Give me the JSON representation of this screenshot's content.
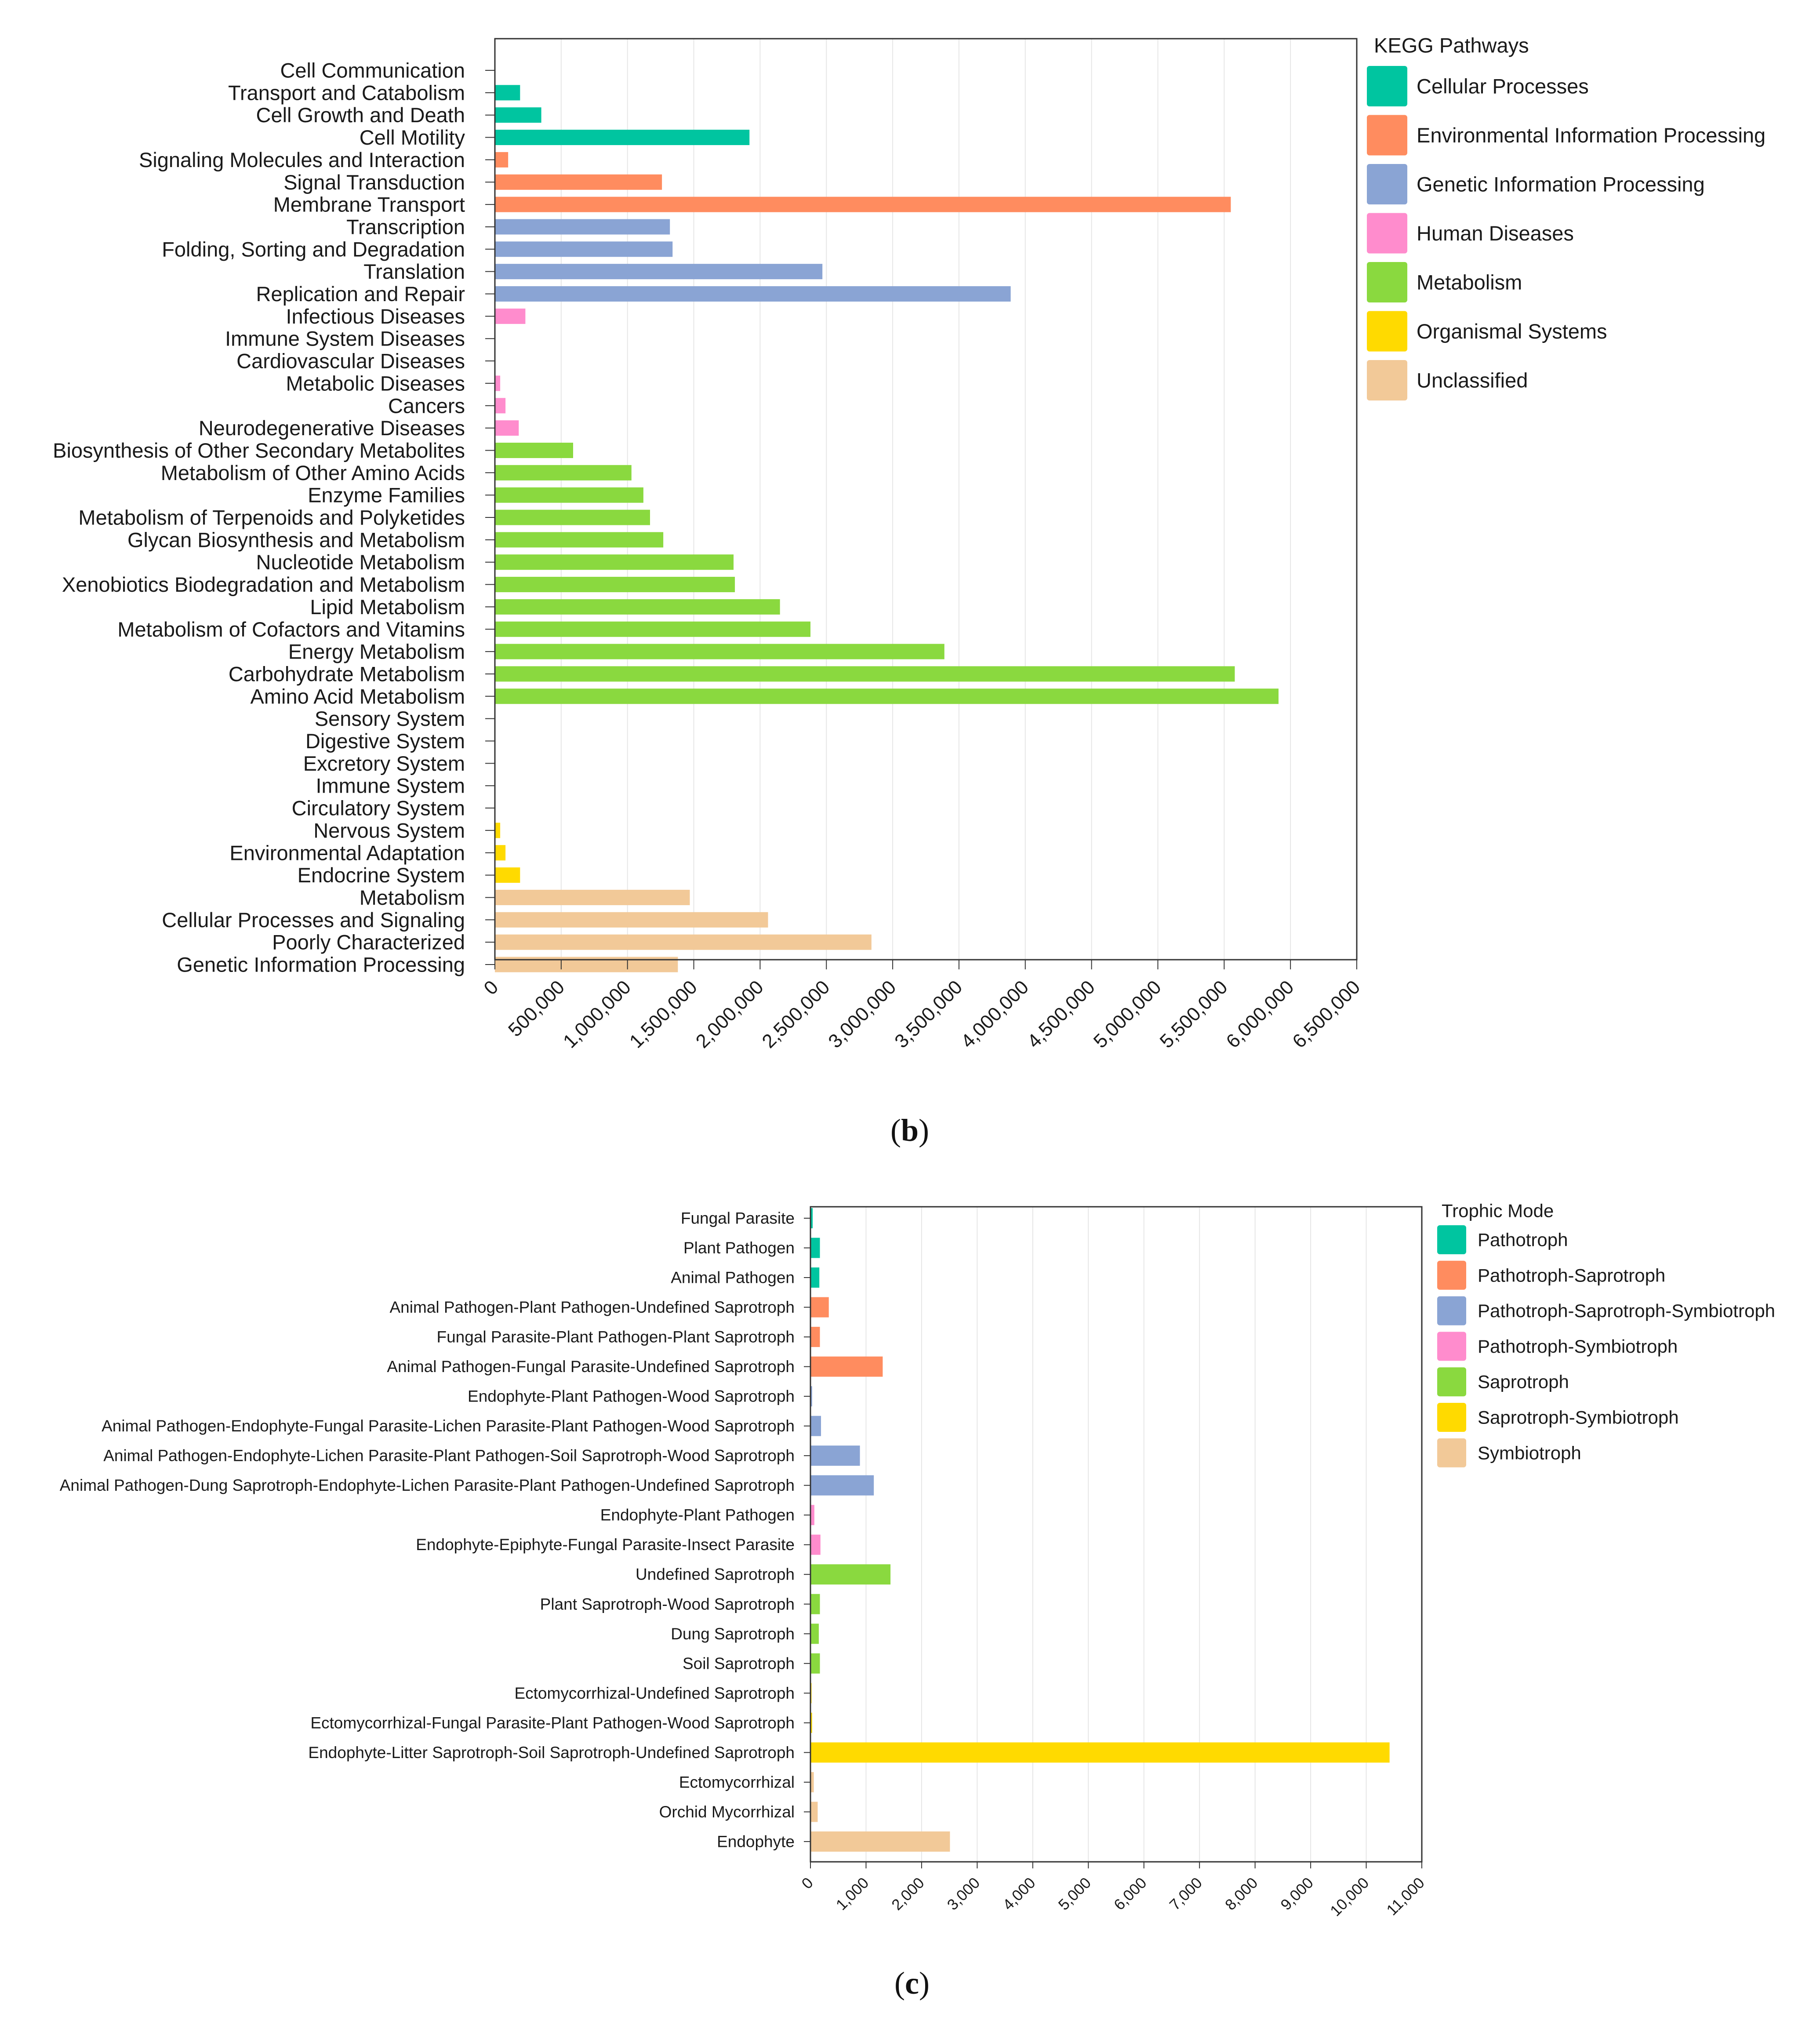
{
  "chart_data": [
    {
      "id": "b",
      "type": "bar",
      "orientation": "horizontal",
      "caption_letter": "b",
      "legend_title": "KEGG Pathways",
      "xlim": [
        0,
        6500000
      ],
      "x_ticks": [
        0,
        500000,
        1000000,
        1500000,
        2000000,
        2500000,
        3000000,
        3500000,
        4000000,
        4500000,
        5000000,
        5500000,
        6000000,
        6500000
      ],
      "x_tick_labels": [
        "0",
        "500,000",
        "1,000,000",
        "1,500,000",
        "2,000,000",
        "2,500,000",
        "3,000,000",
        "3,500,000",
        "4,000,000",
        "4,500,000",
        "5,000,000",
        "5,500,000",
        "6,000,000",
        "6,500,000"
      ],
      "grid": "vertical",
      "groups": [
        {
          "name": "Cellular Processes",
          "color": "#00c5a0"
        },
        {
          "name": "Environmental Information Processing",
          "color": "#ff8c5f"
        },
        {
          "name": "Genetic Information Processing",
          "color": "#8aa4d4"
        },
        {
          "name": "Human Diseases",
          "color": "#ff8ccd"
        },
        {
          "name": "Metabolism",
          "color": "#8ad93f"
        },
        {
          "name": "Organismal Systems",
          "color": "#ffda00"
        },
        {
          "name": "Unclassified",
          "color": "#f2c998"
        }
      ],
      "bars": [
        {
          "label": "Cell Communication",
          "value": 0,
          "group": 0
        },
        {
          "label": "Transport and Catabolism",
          "value": 190000,
          "group": 0
        },
        {
          "label": "Cell Growth and Death",
          "value": 350000,
          "group": 0
        },
        {
          "label": "Cell Motility",
          "value": 1920000,
          "group": 0
        },
        {
          "label": "Signaling Molecules and Interaction",
          "value": 100000,
          "group": 1
        },
        {
          "label": "Signal Transduction",
          "value": 1260000,
          "group": 1
        },
        {
          "label": "Membrane Transport",
          "value": 5550000,
          "group": 1
        },
        {
          "label": "Transcription",
          "value": 1320000,
          "group": 2
        },
        {
          "label": "Folding, Sorting and Degradation",
          "value": 1340000,
          "group": 2
        },
        {
          "label": "Translation",
          "value": 2470000,
          "group": 2
        },
        {
          "label": "Replication and Repair",
          "value": 3890000,
          "group": 2
        },
        {
          "label": "Infectious Diseases",
          "value": 230000,
          "group": 3
        },
        {
          "label": "Immune System Diseases",
          "value": 0,
          "group": 3
        },
        {
          "label": "Cardiovascular Diseases",
          "value": 0,
          "group": 3
        },
        {
          "label": "Metabolic Diseases",
          "value": 40000,
          "group": 3
        },
        {
          "label": "Cancers",
          "value": 80000,
          "group": 3
        },
        {
          "label": "Neurodegenerative Diseases",
          "value": 180000,
          "group": 3
        },
        {
          "label": "Biosynthesis of Other Secondary Metabolites",
          "value": 590000,
          "group": 4
        },
        {
          "label": "Metabolism of Other Amino Acids",
          "value": 1030000,
          "group": 4
        },
        {
          "label": "Enzyme Families",
          "value": 1120000,
          "group": 4
        },
        {
          "label": "Metabolism of Terpenoids and Polyketides",
          "value": 1170000,
          "group": 4
        },
        {
          "label": "Glycan Biosynthesis and Metabolism",
          "value": 1270000,
          "group": 4
        },
        {
          "label": "Nucleotide Metabolism",
          "value": 1800000,
          "group": 4
        },
        {
          "label": "Xenobiotics Biodegradation and Metabolism",
          "value": 1810000,
          "group": 4
        },
        {
          "label": "Lipid Metabolism",
          "value": 2150000,
          "group": 4
        },
        {
          "label": "Metabolism of Cofactors and Vitamins",
          "value": 2380000,
          "group": 4
        },
        {
          "label": "Energy Metabolism",
          "value": 3390000,
          "group": 4
        },
        {
          "label": "Carbohydrate Metabolism",
          "value": 5580000,
          "group": 4
        },
        {
          "label": "Amino Acid Metabolism",
          "value": 5910000,
          "group": 4
        },
        {
          "label": "Sensory System",
          "value": 0,
          "group": 5
        },
        {
          "label": "Digestive System",
          "value": 0,
          "group": 5
        },
        {
          "label": "Excretory System",
          "value": 0,
          "group": 5
        },
        {
          "label": "Immune System",
          "value": 0,
          "group": 5
        },
        {
          "label": "Circulatory System",
          "value": 0,
          "group": 5
        },
        {
          "label": "Nervous System",
          "value": 40000,
          "group": 5
        },
        {
          "label": "Environmental Adaptation",
          "value": 80000,
          "group": 5
        },
        {
          "label": "Endocrine System",
          "value": 190000,
          "group": 5
        },
        {
          "label": "Metabolism",
          "value": 1470000,
          "group": 6
        },
        {
          "label": "Cellular Processes and Signaling",
          "value": 2060000,
          "group": 6
        },
        {
          "label": "Poorly Characterized",
          "value": 2840000,
          "group": 6
        },
        {
          "label": "Genetic Information Processing",
          "value": 1380000,
          "group": 6
        }
      ]
    },
    {
      "id": "c",
      "type": "bar",
      "orientation": "horizontal",
      "caption_letter": "c",
      "legend_title": "Trophic Mode",
      "xlim": [
        0,
        11000
      ],
      "x_ticks": [
        0,
        1000,
        2000,
        3000,
        4000,
        5000,
        6000,
        7000,
        8000,
        9000,
        10000,
        11000
      ],
      "x_tick_labels": [
        "0",
        "1,000",
        "2,000",
        "3,000",
        "4,000",
        "5,000",
        "6,000",
        "7,000",
        "8,000",
        "9,000",
        "10,000",
        "11,000"
      ],
      "grid": "vertical",
      "groups": [
        {
          "name": "Pathotroph",
          "color": "#00c5a0"
        },
        {
          "name": "Pathotroph-Saprotroph",
          "color": "#ff8c5f"
        },
        {
          "name": "Pathotroph-Saprotroph-Symbiotroph",
          "color": "#8aa4d4"
        },
        {
          "name": "Pathotroph-Symbiotroph",
          "color": "#ff8ccd"
        },
        {
          "name": "Saprotroph",
          "color": "#8ad93f"
        },
        {
          "name": "Saprotroph-Symbiotroph",
          "color": "#ffda00"
        },
        {
          "name": "Symbiotroph",
          "color": "#f2c998"
        }
      ],
      "bars": [
        {
          "label": "Fungal Parasite",
          "value": 40,
          "group": 0
        },
        {
          "label": "Plant Pathogen",
          "value": 170,
          "group": 0
        },
        {
          "label": "Animal Pathogen",
          "value": 160,
          "group": 0
        },
        {
          "label": "Animal Pathogen-Plant Pathogen-Undefined Saprotroph",
          "value": 330,
          "group": 1
        },
        {
          "label": "Fungal Parasite-Plant Pathogen-Plant Saprotroph",
          "value": 170,
          "group": 1
        },
        {
          "label": "Animal Pathogen-Fungal Parasite-Undefined Saprotroph",
          "value": 1300,
          "group": 1
        },
        {
          "label": "Endophyte-Plant Pathogen-Wood Saprotroph",
          "value": 30,
          "group": 2
        },
        {
          "label": "Animal Pathogen-Endophyte-Fungal Parasite-Lichen Parasite-Plant Pathogen-Wood Saprotroph",
          "value": 190,
          "group": 2
        },
        {
          "label": "Animal Pathogen-Endophyte-Lichen Parasite-Plant Pathogen-Soil Saprotroph-Wood Saprotroph",
          "value": 890,
          "group": 2
        },
        {
          "label": "Animal Pathogen-Dung Saprotroph-Endophyte-Lichen Parasite-Plant Pathogen-Undefined Saprotroph",
          "value": 1140,
          "group": 2
        },
        {
          "label": "Endophyte-Plant Pathogen",
          "value": 70,
          "group": 3
        },
        {
          "label": "Endophyte-Epiphyte-Fungal Parasite-Insect Parasite",
          "value": 180,
          "group": 3
        },
        {
          "label": "Undefined Saprotroph",
          "value": 1440,
          "group": 4
        },
        {
          "label": "Plant Saprotroph-Wood Saprotroph",
          "value": 170,
          "group": 4
        },
        {
          "label": "Dung Saprotroph",
          "value": 150,
          "group": 4
        },
        {
          "label": "Soil Saprotroph",
          "value": 170,
          "group": 4
        },
        {
          "label": "Ectomycorrhizal-Undefined Saprotroph",
          "value": 20,
          "group": 5
        },
        {
          "label": "Ectomycorrhizal-Fungal Parasite-Plant Pathogen-Wood Saprotroph",
          "value": 30,
          "group": 5
        },
        {
          "label": "Endophyte-Litter Saprotroph-Soil Saprotroph-Undefined Saprotroph",
          "value": 10420,
          "group": 5
        },
        {
          "label": "Ectomycorrhizal",
          "value": 60,
          "group": 6
        },
        {
          "label": "Orchid Mycorrhizal",
          "value": 130,
          "group": 6
        },
        {
          "label": "Endophyte",
          "value": 2510,
          "group": 6
        }
      ]
    }
  ]
}
